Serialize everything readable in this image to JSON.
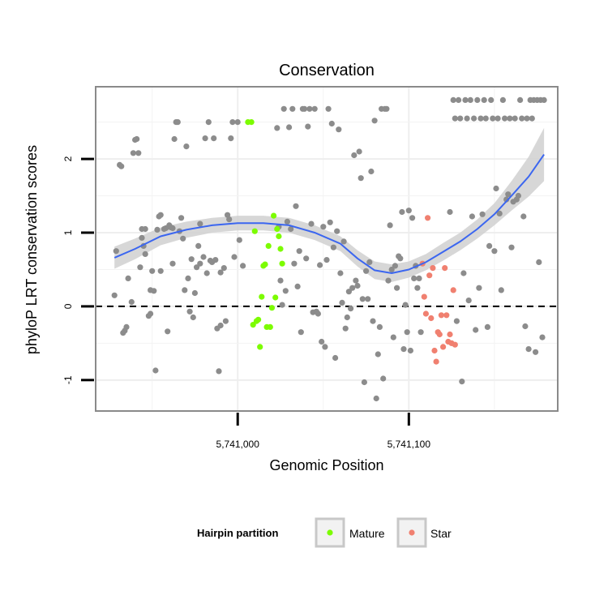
{
  "chart_data": {
    "type": "scatter",
    "title": "Conservation",
    "xlabel": "Genomic Position",
    "ylabel": "phyloP LRT conservation scores",
    "xlim": [
      5740917,
      5741187
    ],
    "ylim": [
      -1.42,
      2.98
    ],
    "x_ticks": [
      {
        "value": 5741000,
        "label": "5,741,000"
      },
      {
        "value": 5741100,
        "label": "5,741,100"
      }
    ],
    "y_ticks": [
      {
        "value": -1,
        "label": "-1"
      },
      {
        "value": 0,
        "label": "0"
      },
      {
        "value": 1,
        "label": "1"
      },
      {
        "value": 2,
        "label": "2"
      }
    ],
    "reference_line": {
      "y": 0,
      "style": "dashed"
    },
    "grid": true,
    "legend": {
      "title": "Hairpin partition",
      "placement": "bottom",
      "entries": [
        {
          "label": "Mature",
          "color": "#7CFC00"
        },
        {
          "label": "Star",
          "color": "#F08070"
        }
      ]
    },
    "colors": {
      "other": "#8c8c8c",
      "Mature": "#7CFC00",
      "Star": "#F08070",
      "smooth": "#3b66f0",
      "band": "#d0d0d0"
    },
    "series": [
      {
        "partition": "other",
        "points": [
          [
            5740928,
            0.15
          ],
          [
            5740929,
            0.75
          ],
          [
            5740931,
            1.92
          ],
          [
            5740932,
            1.9
          ],
          [
            5740933,
            -0.36
          ],
          [
            5740934,
            -0.33
          ],
          [
            5740935,
            -0.28
          ],
          [
            5740936,
            0.38
          ],
          [
            5740938,
            0.06
          ],
          [
            5740939,
            2.08
          ],
          [
            5740940,
            2.26
          ],
          [
            5740941,
            2.27
          ],
          [
            5740942,
            2.08
          ],
          [
            5740943,
            0.53
          ],
          [
            5740944,
            1.05
          ],
          [
            5740944,
            0.93
          ],
          [
            5740945,
            0.82
          ],
          [
            5740946,
            0.71
          ],
          [
            5740946,
            1.05
          ],
          [
            5740948,
            -0.13
          ],
          [
            5740949,
            0.22
          ],
          [
            5740949,
            -0.1
          ],
          [
            5740950,
            0.48
          ],
          [
            5740951,
            0.21
          ],
          [
            5740952,
            -0.87
          ],
          [
            5740953,
            1.04
          ],
          [
            5740954,
            1.22
          ],
          [
            5740955,
            1.24
          ],
          [
            5740955,
            0.48
          ],
          [
            5740957,
            1.05
          ],
          [
            5740958,
            1.06
          ],
          [
            5740959,
            -0.34
          ],
          [
            5740960,
            1.1
          ],
          [
            5740961,
            1.07
          ],
          [
            5740962,
            0.58
          ],
          [
            5740962,
            1.06
          ],
          [
            5740963,
            2.27
          ],
          [
            5740964,
            2.5
          ],
          [
            5740965,
            2.5
          ],
          [
            5740966,
            1.02
          ],
          [
            5740967,
            1.2
          ],
          [
            5740968,
            0.92
          ],
          [
            5740969,
            0.22
          ],
          [
            5740970,
            2.17
          ],
          [
            5740971,
            0.38
          ],
          [
            5740972,
            -0.07
          ],
          [
            5740973,
            0.64
          ],
          [
            5740974,
            -0.15
          ],
          [
            5740975,
            0.18
          ],
          [
            5740976,
            0.53
          ],
          [
            5740977,
            0.82
          ],
          [
            5740978,
            1.12
          ],
          [
            5740978,
            0.58
          ],
          [
            5740980,
            0.67
          ],
          [
            5740981,
            2.28
          ],
          [
            5740982,
            0.45
          ],
          [
            5740983,
            2.5
          ],
          [
            5740984,
            0.62
          ],
          [
            5740985,
            0.6
          ],
          [
            5740986,
            2.28
          ],
          [
            5740987,
            0.63
          ],
          [
            5740988,
            -0.3
          ],
          [
            5740989,
            -0.88
          ],
          [
            5740990,
            0.46
          ],
          [
            5740990,
            -0.26
          ],
          [
            5740992,
            0.52
          ],
          [
            5740993,
            -0.2
          ],
          [
            5740994,
            1.24
          ],
          [
            5740995,
            1.18
          ],
          [
            5740996,
            2.28
          ],
          [
            5740997,
            2.5
          ],
          [
            5740998,
            0.67
          ],
          [
            5741000,
            2.5
          ],
          [
            5741001,
            0.9
          ],
          [
            5741003,
            0.55
          ],
          [
            5741023,
            2.42
          ],
          [
            5741024,
            1.08
          ],
          [
            5741025,
            0.35
          ],
          [
            5741026,
            0.02
          ],
          [
            5741027,
            2.68
          ],
          [
            5741028,
            0.21
          ],
          [
            5741029,
            1.15
          ],
          [
            5741030,
            2.43
          ],
          [
            5741031,
            1.05
          ],
          [
            5741032,
            2.68
          ],
          [
            5741033,
            0.58
          ],
          [
            5741034,
            1.36
          ],
          [
            5741035,
            0.27
          ],
          [
            5741036,
            0.75
          ],
          [
            5741037,
            -0.35
          ],
          [
            5741038,
            2.68
          ],
          [
            5741039,
            2.68
          ],
          [
            5741040,
            0.65
          ],
          [
            5741041,
            2.44
          ],
          [
            5741042,
            2.68
          ],
          [
            5741043,
            1.12
          ],
          [
            5741044,
            -0.08
          ],
          [
            5741045,
            2.68
          ],
          [
            5741046,
            -0.07
          ],
          [
            5741047,
            -0.1
          ],
          [
            5741048,
            0.56
          ],
          [
            5741049,
            -0.48
          ],
          [
            5741050,
            1.08
          ],
          [
            5741051,
            -0.55
          ],
          [
            5741052,
            0.63
          ],
          [
            5741053,
            2.68
          ],
          [
            5741054,
            1.14
          ],
          [
            5741055,
            2.48
          ],
          [
            5741056,
            0.8
          ],
          [
            5741057,
            -0.7
          ],
          [
            5741058,
            1.02
          ],
          [
            5741059,
            2.4
          ],
          [
            5741060,
            0.45
          ],
          [
            5741061,
            0.05
          ],
          [
            5741062,
            0.88
          ],
          [
            5741063,
            -0.3
          ],
          [
            5741064,
            -0.15
          ],
          [
            5741065,
            0.2
          ],
          [
            5741066,
            -0.03
          ],
          [
            5741067,
            0.25
          ],
          [
            5741068,
            2.05
          ],
          [
            5741069,
            0.35
          ],
          [
            5741070,
            0.28
          ],
          [
            5741071,
            2.1
          ],
          [
            5741072,
            1.74
          ],
          [
            5741073,
            0.1
          ],
          [
            5741074,
            -1.03
          ],
          [
            5741075,
            0.48
          ],
          [
            5741076,
            0.1
          ],
          [
            5741077,
            0.6
          ],
          [
            5741078,
            1.83
          ],
          [
            5741079,
            -0.2
          ],
          [
            5741080,
            2.52
          ],
          [
            5741081,
            -1.25
          ],
          [
            5741082,
            -0.65
          ],
          [
            5741083,
            -0.28
          ],
          [
            5741084,
            2.68
          ],
          [
            5741085,
            -0.98
          ],
          [
            5741086,
            2.68
          ],
          [
            5741087,
            2.68
          ],
          [
            5741088,
            0.35
          ],
          [
            5741089,
            1.1
          ],
          [
            5741090,
            0.5
          ],
          [
            5741091,
            -0.42
          ],
          [
            5741092,
            0.55
          ],
          [
            5741093,
            0.25
          ],
          [
            5741094,
            0.68
          ],
          [
            5741095,
            0.65
          ],
          [
            5741096,
            1.28
          ],
          [
            5741097,
            -0.58
          ],
          [
            5741098,
            0.02
          ],
          [
            5741099,
            -0.35
          ],
          [
            5741100,
            1.3
          ],
          [
            5741101,
            -0.6
          ],
          [
            5741102,
            1.2
          ],
          [
            5741103,
            0.38
          ],
          [
            5741104,
            0.55
          ],
          [
            5741105,
            0.25
          ],
          [
            5741106,
            0.38
          ],
          [
            5741107,
            -0.35
          ],
          [
            5741124,
            1.28
          ],
          [
            5741126,
            2.8
          ],
          [
            5741127,
            2.55
          ],
          [
            5741128,
            -0.2
          ],
          [
            5741129,
            2.8
          ],
          [
            5741130,
            2.55
          ],
          [
            5741131,
            -1.02
          ],
          [
            5741132,
            0.45
          ],
          [
            5741133,
            2.8
          ],
          [
            5741134,
            2.55
          ],
          [
            5741135,
            0.08
          ],
          [
            5741136,
            2.8
          ],
          [
            5741137,
            1.22
          ],
          [
            5741138,
            2.55
          ],
          [
            5741139,
            -0.32
          ],
          [
            5741140,
            2.8
          ],
          [
            5741141,
            0.25
          ],
          [
            5741142,
            2.55
          ],
          [
            5741143,
            1.25
          ],
          [
            5741144,
            2.8
          ],
          [
            5741145,
            2.55
          ],
          [
            5741146,
            -0.28
          ],
          [
            5741147,
            0.82
          ],
          [
            5741148,
            2.8
          ],
          [
            5741149,
            2.55
          ],
          [
            5741150,
            0.75
          ],
          [
            5741151,
            1.6
          ],
          [
            5741152,
            2.55
          ],
          [
            5741153,
            1.26
          ],
          [
            5741154,
            0.22
          ],
          [
            5741155,
            2.8
          ],
          [
            5741156,
            2.55
          ],
          [
            5741157,
            1.45
          ],
          [
            5741158,
            1.52
          ],
          [
            5741159,
            2.55
          ],
          [
            5741160,
            0.8
          ],
          [
            5741161,
            1.42
          ],
          [
            5741162,
            2.55
          ],
          [
            5741163,
            1.45
          ],
          [
            5741164,
            1.5
          ],
          [
            5741165,
            2.8
          ],
          [
            5741166,
            2.55
          ],
          [
            5741167,
            1.22
          ],
          [
            5741168,
            -0.27
          ],
          [
            5741169,
            2.55
          ],
          [
            5741170,
            -0.58
          ],
          [
            5741171,
            2.8
          ],
          [
            5741172,
            2.55
          ],
          [
            5741173,
            2.8
          ],
          [
            5741174,
            -0.62
          ],
          [
            5741175,
            2.8
          ],
          [
            5741176,
            0.6
          ],
          [
            5741177,
            2.8
          ],
          [
            5741178,
            -0.42
          ],
          [
            5741179,
            2.8
          ]
        ]
      },
      {
        "partition": "Mature",
        "points": [
          [
            5741006,
            2.5
          ],
          [
            5741008,
            2.5
          ],
          [
            5741009,
            -0.25
          ],
          [
            5741010,
            1.02
          ],
          [
            5741011,
            -0.2
          ],
          [
            5741012,
            -0.18
          ],
          [
            5741013,
            -0.55
          ],
          [
            5741014,
            0.13
          ],
          [
            5741015,
            0.55
          ],
          [
            5741016,
            0.57
          ],
          [
            5741017,
            -0.28
          ],
          [
            5741018,
            0.82
          ],
          [
            5741019,
            -0.28
          ],
          [
            5741020,
            -0.02
          ],
          [
            5741021,
            1.23
          ],
          [
            5741022,
            0.12
          ],
          [
            5741023,
            1.05
          ],
          [
            5741024,
            0.95
          ],
          [
            5741025,
            0.78
          ],
          [
            5741026,
            0.58
          ]
        ]
      },
      {
        "partition": "Star",
        "points": [
          [
            5741108,
            0.58
          ],
          [
            5741109,
            0.13
          ],
          [
            5741110,
            -0.1
          ],
          [
            5741111,
            1.2
          ],
          [
            5741112,
            0.42
          ],
          [
            5741113,
            -0.16
          ],
          [
            5741114,
            0.52
          ],
          [
            5741115,
            -0.6
          ],
          [
            5741116,
            -0.75
          ],
          [
            5741117,
            -0.35
          ],
          [
            5741118,
            -0.38
          ],
          [
            5741119,
            -0.12
          ],
          [
            5741120,
            -0.55
          ],
          [
            5741121,
            0.52
          ],
          [
            5741122,
            -0.12
          ],
          [
            5741123,
            -0.48
          ],
          [
            5741124,
            -0.38
          ],
          [
            5741125,
            -0.5
          ],
          [
            5741126,
            0.22
          ],
          [
            5741127,
            -0.52
          ]
        ]
      }
    ],
    "smooth": {
      "method": "loess",
      "points": [
        [
          5740928,
          0.66,
          0.15
        ],
        [
          5740940,
          0.78,
          0.14
        ],
        [
          5740955,
          0.95,
          0.12
        ],
        [
          5740970,
          1.04,
          0.11
        ],
        [
          5740985,
          1.1,
          0.1
        ],
        [
          5741000,
          1.13,
          0.1
        ],
        [
          5741015,
          1.13,
          0.1
        ],
        [
          5741030,
          1.1,
          0.1
        ],
        [
          5741045,
          1.0,
          0.1
        ],
        [
          5741060,
          0.85,
          0.1
        ],
        [
          5741070,
          0.65,
          0.11
        ],
        [
          5741080,
          0.49,
          0.12
        ],
        [
          5741090,
          0.45,
          0.12
        ],
        [
          5741100,
          0.5,
          0.11
        ],
        [
          5741110,
          0.6,
          0.11
        ],
        [
          5741120,
          0.74,
          0.12
        ],
        [
          5741130,
          0.88,
          0.12
        ],
        [
          5741140,
          1.05,
          0.13
        ],
        [
          5741150,
          1.25,
          0.15
        ],
        [
          5741160,
          1.5,
          0.2
        ],
        [
          5741170,
          1.76,
          0.27
        ],
        [
          5741179,
          2.06,
          0.36
        ]
      ]
    }
  }
}
